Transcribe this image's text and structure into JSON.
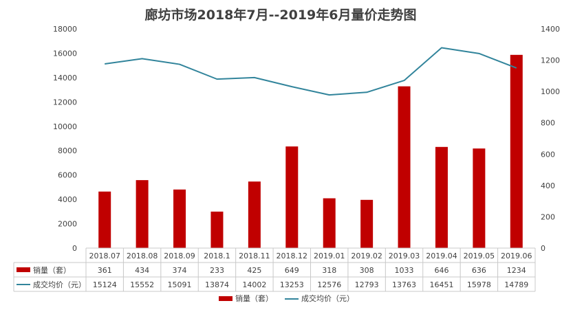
{
  "chart_data": {
    "type": "bar",
    "title": "廊坊市场2018年7月--2019年6月量价走势图",
    "categories": [
      "2018.07",
      "2018.08",
      "2018.09",
      "2018.1",
      "2018.11",
      "2018.12",
      "2019.01",
      "2019.02",
      "2019.03",
      "2019.04",
      "2019.05",
      "2019.06"
    ],
    "left_axis": {
      "min": 0,
      "max": 18000,
      "step": 2000,
      "ticks": [
        "0",
        "2000",
        "4000",
        "6000",
        "8000",
        "10000",
        "12000",
        "14000",
        "16000",
        "18000"
      ]
    },
    "right_axis": {
      "min": 0,
      "max": 1400,
      "step": 200,
      "ticks": [
        "0",
        "200",
        "400",
        "600",
        "800",
        "1000",
        "1200",
        "1400"
      ]
    },
    "series": [
      {
        "name": "销量（套）",
        "type": "bar",
        "axis": "right",
        "color": "#c00000",
        "values": [
          361,
          434,
          374,
          233,
          425,
          649,
          318,
          308,
          1033,
          646,
          636,
          1234
        ]
      },
      {
        "name": "成交均价（元）",
        "type": "line",
        "axis": "left",
        "color": "#31849b",
        "values": [
          15124,
          15552,
          15091,
          13874,
          14002,
          13253,
          12576,
          12793,
          13763,
          16451,
          15978,
          14789
        ]
      }
    ],
    "legend": {
      "position": "bottom"
    },
    "grid": false
  }
}
